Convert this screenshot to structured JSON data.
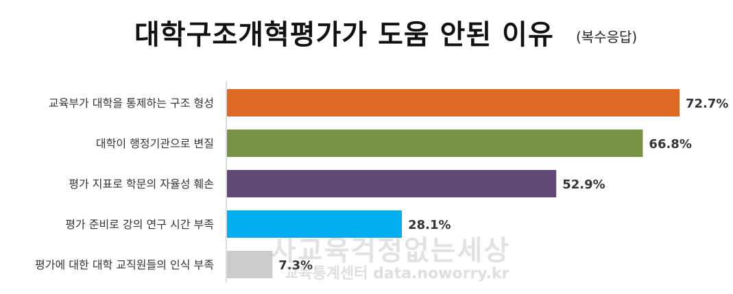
{
  "chart_data": {
    "type": "bar",
    "orientation": "horizontal",
    "title": "대학구조개혁평가가 도움 안된 이유",
    "subtitle": "(복수응답)",
    "categories": [
      "교육부가 대학을 통제하는 구조 형성",
      "대학이 행정기관으로 변질",
      "평가 지표로 학문의 자율성 훼손",
      "평가 준비로 강의 연구 시간 부족",
      "평가에 대한 대학 교직원들의 인식 부족"
    ],
    "values": [
      72.7,
      66.8,
      52.9,
      28.1,
      7.3
    ],
    "value_labels": [
      "72.7%",
      "66.8%",
      "52.9%",
      "28.1%",
      "7.3%"
    ],
    "colors": [
      "#DE6924",
      "#779244",
      "#5E4A75",
      "#00AEEF",
      "#CCCCCC"
    ],
    "xlim": [
      0,
      80
    ],
    "grid": false,
    "legend": "none"
  },
  "watermark": {
    "line1": "사교육걱정없는세상",
    "line2": "교육통계센터 data.noworry.kr"
  }
}
